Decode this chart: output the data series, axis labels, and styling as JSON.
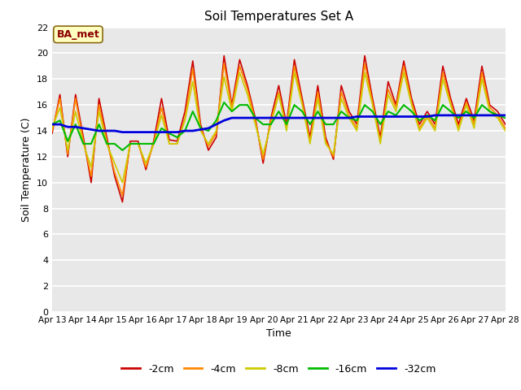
{
  "title": "Soil Temperatures Set A",
  "xlabel": "Time",
  "ylabel": "Soil Temperature (C)",
  "annotation": "BA_met",
  "ylim": [
    0,
    22
  ],
  "yticks": [
    0,
    2,
    4,
    6,
    8,
    10,
    12,
    14,
    16,
    18,
    20,
    22
  ],
  "bg_color": "#d8d8d8",
  "plot_bg_color": "#e0e0e0",
  "legend_entries": [
    "-2cm",
    "-4cm",
    "-8cm",
    "-16cm",
    "-32cm"
  ],
  "line_colors": [
    "#cc0000",
    "#ff8800",
    "#cccc00",
    "#00bb00",
    "#0000dd"
  ],
  "xticklabels": [
    "Apr 13",
    "Apr 14",
    "Apr 15",
    "Apr 16",
    "Apr 17",
    "Apr 18",
    "Apr 19",
    "Apr 20",
    "Apr 21",
    "Apr 22",
    "Apr 23",
    "Apr 24",
    "Apr 25",
    "Apr 26",
    "Apr 27",
    "Apr 28"
  ],
  "depth_2cm": [
    13.8,
    16.8,
    12.0,
    16.8,
    13.5,
    10.0,
    16.5,
    13.5,
    10.5,
    8.5,
    13.2,
    13.2,
    11.0,
    13.2,
    16.5,
    13.3,
    13.2,
    15.5,
    19.4,
    14.5,
    12.5,
    13.5,
    19.8,
    16.0,
    19.5,
    17.5,
    15.0,
    11.5,
    15.0,
    17.5,
    14.5,
    19.5,
    16.5,
    13.5,
    17.5,
    13.5,
    11.8,
    17.5,
    15.5,
    14.5,
    19.8,
    16.5,
    13.5,
    17.8,
    16.0,
    19.4,
    16.5,
    14.5,
    15.5,
    14.5,
    19.0,
    16.5,
    14.5,
    16.5,
    14.8,
    19.0,
    16.0,
    15.5,
    14.5
  ],
  "depth_4cm": [
    14.0,
    16.5,
    12.2,
    16.5,
    13.2,
    10.5,
    16.0,
    13.2,
    10.8,
    9.0,
    13.0,
    13.0,
    11.2,
    13.0,
    15.8,
    13.0,
    13.0,
    15.0,
    18.8,
    14.2,
    12.8,
    13.8,
    19.2,
    15.8,
    19.0,
    17.2,
    14.8,
    11.8,
    14.8,
    17.0,
    14.2,
    19.0,
    16.2,
    13.2,
    17.0,
    13.2,
    12.0,
    17.0,
    15.2,
    14.2,
    19.2,
    16.2,
    13.2,
    17.2,
    15.8,
    19.0,
    16.2,
    14.2,
    15.2,
    14.2,
    18.5,
    16.2,
    14.2,
    16.2,
    14.5,
    18.5,
    15.8,
    15.2,
    14.2
  ],
  "depth_8cm": [
    14.2,
    15.8,
    12.5,
    15.5,
    13.0,
    11.2,
    15.5,
    13.0,
    11.5,
    10.0,
    13.0,
    13.0,
    11.5,
    13.0,
    15.2,
    13.0,
    13.0,
    14.8,
    17.8,
    14.0,
    13.0,
    14.0,
    18.2,
    15.5,
    18.5,
    16.8,
    14.5,
    12.2,
    14.5,
    16.8,
    14.0,
    18.5,
    16.0,
    13.0,
    16.5,
    13.0,
    12.2,
    16.5,
    15.0,
    14.0,
    18.5,
    16.0,
    13.0,
    16.8,
    15.5,
    18.5,
    16.0,
    14.0,
    15.0,
    14.0,
    18.0,
    16.0,
    14.0,
    16.0,
    14.2,
    18.0,
    15.5,
    15.0,
    14.0
  ],
  "depth_16cm": [
    14.5,
    14.8,
    13.2,
    14.5,
    13.0,
    13.0,
    14.5,
    13.0,
    13.0,
    12.5,
    13.0,
    13.0,
    13.0,
    13.0,
    14.2,
    13.8,
    13.5,
    14.0,
    15.5,
    14.2,
    14.0,
    14.8,
    16.2,
    15.5,
    16.0,
    16.0,
    15.0,
    14.5,
    14.5,
    15.5,
    14.5,
    16.0,
    15.5,
    14.5,
    15.5,
    14.5,
    14.5,
    15.5,
    15.0,
    14.8,
    16.0,
    15.5,
    14.5,
    15.5,
    15.2,
    16.0,
    15.5,
    14.8,
    15.2,
    14.8,
    16.0,
    15.5,
    15.0,
    15.5,
    15.0,
    16.0,
    15.5,
    15.2,
    15.0
  ],
  "depth_32cm": [
    14.5,
    14.5,
    14.3,
    14.3,
    14.2,
    14.1,
    14.0,
    14.0,
    14.0,
    13.9,
    13.9,
    13.9,
    13.9,
    13.9,
    13.9,
    13.9,
    13.9,
    14.0,
    14.0,
    14.1,
    14.2,
    14.5,
    14.8,
    15.0,
    15.0,
    15.0,
    15.0,
    15.0,
    15.0,
    15.0,
    15.0,
    15.0,
    15.0,
    15.0,
    15.0,
    15.0,
    15.0,
    15.0,
    15.0,
    15.1,
    15.1,
    15.1,
    15.1,
    15.1,
    15.1,
    15.1,
    15.1,
    15.1,
    15.1,
    15.2,
    15.2,
    15.2,
    15.2,
    15.2,
    15.2,
    15.2,
    15.2,
    15.2,
    15.2
  ]
}
